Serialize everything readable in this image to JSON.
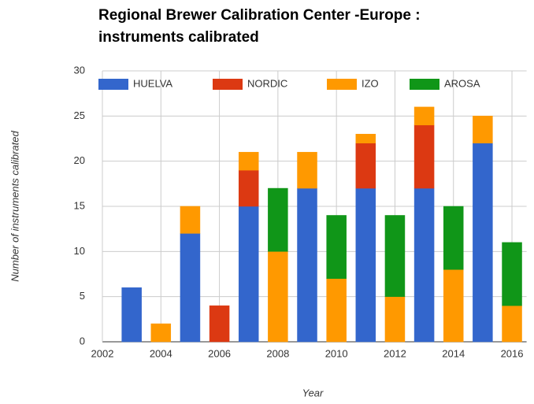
{
  "chart_data": {
    "type": "stacked_bar",
    "title": [
      "Regional Brewer Calibration Center -Europe :",
      "instruments calibrated"
    ],
    "x_label": "Year",
    "y_label": "Number of instruments calibrated",
    "x": [
      2003,
      2004,
      2005,
      2006,
      2007,
      2008,
      2009,
      2010,
      2011,
      2012,
      2013,
      2014,
      2015,
      2016
    ],
    "series": [
      {
        "name": "HUELVA",
        "color": "#3366cc",
        "values": [
          6,
          0,
          12,
          0,
          15,
          0,
          17,
          0,
          17,
          0,
          17,
          0,
          22,
          0
        ]
      },
      {
        "name": "NORDIC",
        "color": "#dc3912",
        "values": [
          0,
          0,
          0,
          4,
          4,
          0,
          0,
          0,
          5,
          0,
          7,
          0,
          0,
          0
        ]
      },
      {
        "name": "IZO",
        "color": "#ff9900",
        "values": [
          0,
          2,
          3,
          0,
          2,
          10,
          4,
          7,
          1,
          5,
          2,
          8,
          3,
          4
        ]
      },
      {
        "name": "AROSA",
        "color": "#109618",
        "values": [
          0,
          0,
          0,
          0,
          0,
          7,
          0,
          7,
          0,
          9,
          0,
          7,
          0,
          7
        ]
      }
    ],
    "xlim": [
      2002,
      2016.5
    ],
    "xticks": [
      2002,
      2004,
      2006,
      2008,
      2010,
      2012,
      2014,
      2016
    ],
    "ylim": [
      0,
      30
    ],
    "yticks": [
      0,
      5,
      10,
      15,
      20,
      25,
      30
    ],
    "grid": true,
    "legend": "top"
  }
}
